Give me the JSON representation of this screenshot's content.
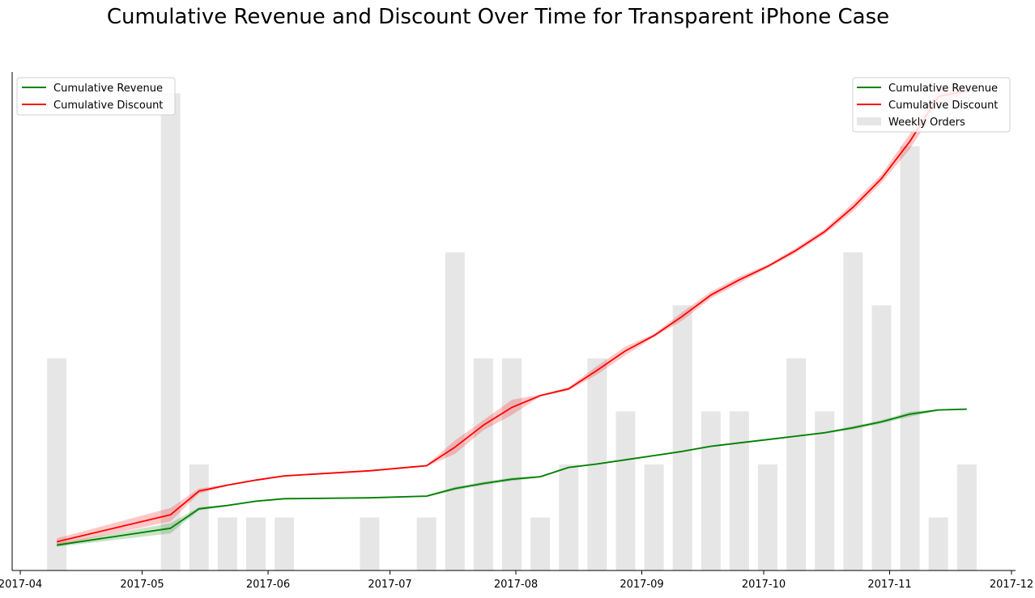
{
  "chart_data": {
    "type": "line",
    "title": "Cumulative Revenue and Discount Over Time for Transparent iPhone Case",
    "xlabel": "",
    "ylabel": "",
    "x_ticks": [
      "2017-04",
      "2017-05",
      "2017-06",
      "2017-07",
      "2017-08",
      "2017-09",
      "2017-10",
      "2017-11",
      "2017-12"
    ],
    "xlim": [
      "2017-03-30",
      "2017-12-02"
    ],
    "line_ylim": [
      0,
      590
    ],
    "bar_ylim": [
      0,
      9.4
    ],
    "colors": {
      "revenue": "#008000",
      "discount": "#ff0000",
      "orders": "#e6e6e6"
    },
    "series": [
      {
        "name": "Cumulative Revenue",
        "x": [
          "2017-04-10",
          "2017-05-08",
          "2017-05-15",
          "2017-05-22",
          "2017-05-29",
          "2017-06-05",
          "2017-06-26",
          "2017-07-10",
          "2017-07-17",
          "2017-07-24",
          "2017-07-31",
          "2017-08-07",
          "2017-08-14",
          "2017-08-21",
          "2017-08-28",
          "2017-09-04",
          "2017-09-11",
          "2017-09-18",
          "2017-09-25",
          "2017-10-02",
          "2017-10-09",
          "2017-10-16",
          "2017-10-23",
          "2017-10-30",
          "2017-11-06",
          "2017-11-13",
          "2017-11-20"
        ],
        "values": [
          30,
          50,
          73,
          77,
          82,
          85,
          86,
          88,
          97,
          103,
          108,
          111,
          122,
          126,
          131,
          136,
          141,
          147,
          151,
          155,
          159,
          163,
          169,
          176,
          185,
          190,
          191
        ],
        "ci_low": [
          28,
          44,
          71,
          76,
          81,
          84,
          85,
          87,
          95,
          101,
          106,
          110,
          121,
          125,
          130,
          135,
          140,
          146,
          150,
          154,
          158,
          162,
          167,
          174,
          182,
          189,
          190
        ],
        "ci_high": [
          32,
          56,
          75,
          78,
          83,
          86,
          87,
          89,
          99,
          105,
          110,
          112,
          123,
          127,
          132,
          137,
          142,
          148,
          152,
          156,
          160,
          164,
          171,
          178,
          188,
          191,
          192
        ]
      },
      {
        "name": "Cumulative Discount",
        "x": [
          "2017-04-10",
          "2017-05-08",
          "2017-05-15",
          "2017-05-22",
          "2017-05-29",
          "2017-06-05",
          "2017-06-26",
          "2017-07-10",
          "2017-07-17",
          "2017-07-24",
          "2017-07-31",
          "2017-08-07",
          "2017-08-14",
          "2017-08-21",
          "2017-08-28",
          "2017-09-04",
          "2017-09-11",
          "2017-09-18",
          "2017-09-25",
          "2017-10-02",
          "2017-10-09",
          "2017-10-16",
          "2017-10-23",
          "2017-10-30",
          "2017-11-06",
          "2017-11-13",
          "2017-11-20"
        ],
        "values": [
          34,
          66,
          94,
          101,
          107,
          112,
          118,
          124,
          146,
          172,
          193,
          207,
          215,
          237,
          260,
          278,
          301,
          326,
          344,
          360,
          379,
          401,
          430,
          464,
          508,
          561,
          568
        ],
        "ci_low": [
          30,
          58,
          91,
          100,
          106,
          111,
          117,
          123,
          138,
          166,
          184,
          206,
          213,
          232,
          255,
          276,
          296,
          322,
          340,
          358,
          376,
          398,
          425,
          459,
          499,
          551,
          565
        ],
        "ci_high": [
          38,
          74,
          97,
          102,
          108,
          113,
          119,
          125,
          154,
          178,
          202,
          208,
          217,
          242,
          265,
          280,
          306,
          330,
          348,
          362,
          382,
          404,
          435,
          469,
          517,
          571,
          571
        ]
      }
    ],
    "bars": {
      "name": "Weekly Orders",
      "x": [
        "2017-04-10",
        "2017-05-08",
        "2017-05-15",
        "2017-05-22",
        "2017-05-29",
        "2017-06-05",
        "2017-06-26",
        "2017-07-10",
        "2017-07-17",
        "2017-07-24",
        "2017-07-31",
        "2017-08-07",
        "2017-08-14",
        "2017-08-21",
        "2017-08-28",
        "2017-09-04",
        "2017-09-11",
        "2017-09-18",
        "2017-09-25",
        "2017-10-02",
        "2017-10-09",
        "2017-10-16",
        "2017-10-23",
        "2017-10-30",
        "2017-11-06",
        "2017-11-13",
        "2017-11-20"
      ],
      "values": [
        4,
        9,
        2,
        1,
        1,
        1,
        1,
        1,
        6,
        4,
        4,
        1,
        2,
        4,
        3,
        2,
        5,
        3,
        3,
        2,
        4,
        3,
        6,
        5,
        8,
        1,
        2
      ]
    },
    "legend_left": {
      "placement": "upper-left",
      "entries": [
        "Cumulative Revenue",
        "Cumulative Discount"
      ]
    },
    "legend_right": {
      "placement": "upper-right",
      "entries": [
        "Cumulative Revenue",
        "Cumulative Discount",
        "Weekly Orders"
      ]
    },
    "grid": false
  }
}
